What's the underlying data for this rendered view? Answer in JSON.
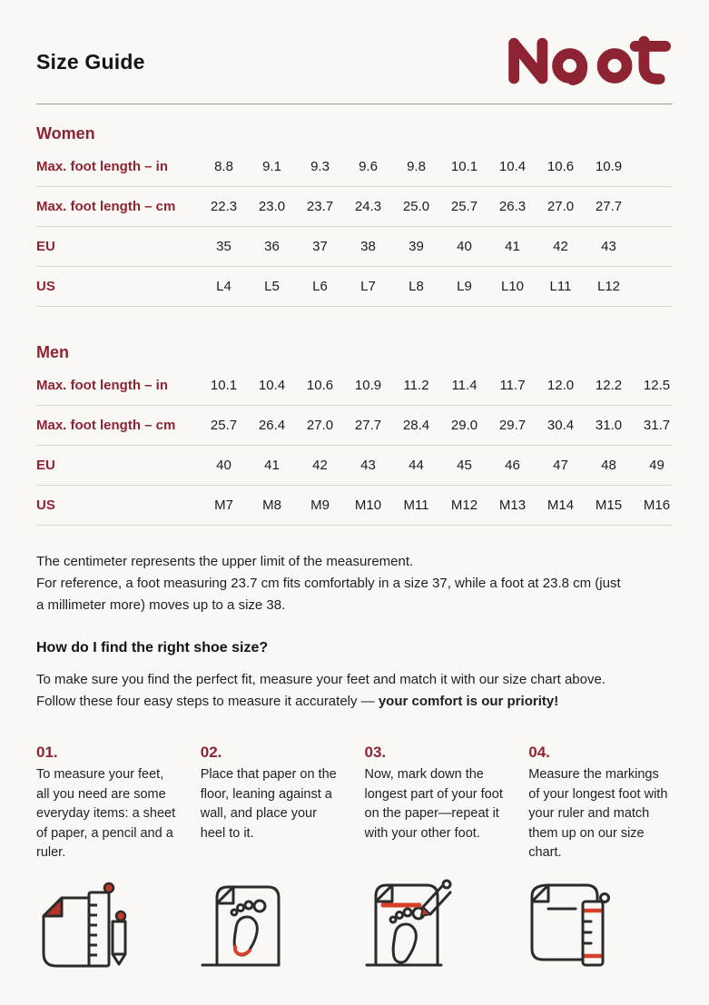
{
  "page": {
    "title": "Size Guide"
  },
  "brand": {
    "name": "Naot",
    "logo_color": "#8e2433"
  },
  "colors": {
    "background": "#faf8f4",
    "brand_red": "#8e2433",
    "accent_red": "#c5392b",
    "text": "#1c1c1c",
    "divider": "#dbd8d2",
    "header_rule": "#9e9c97"
  },
  "sections": [
    {
      "heading": "Women",
      "rows": [
        {
          "label": "Max. foot length – in",
          "values": [
            "8.8",
            "9.1",
            "9.3",
            "9.6",
            "9.8",
            "10.1",
            "10.4",
            "10.6",
            "10.9"
          ]
        },
        {
          "label": "Max. foot length – cm",
          "values": [
            "22.3",
            "23.0",
            "23.7",
            "24.3",
            "25.0",
            "25.7",
            "26.3",
            "27.0",
            "27.7"
          ]
        },
        {
          "label": "EU",
          "values": [
            "35",
            "36",
            "37",
            "38",
            "39",
            "40",
            "41",
            "42",
            "43"
          ]
        },
        {
          "label": "US",
          "values": [
            "L4",
            "L5",
            "L6",
            "L7",
            "L8",
            "L9",
            "L10",
            "L11",
            "L12"
          ]
        }
      ]
    },
    {
      "heading": "Men",
      "rows": [
        {
          "label": "Max. foot length – in",
          "values": [
            "10.1",
            "10.4",
            "10.6",
            "10.9",
            "11.2",
            "11.4",
            "11.7",
            "12.0",
            "12.2",
            "12.5"
          ]
        },
        {
          "label": "Max. foot length – cm",
          "values": [
            "25.7",
            "26.4",
            "27.0",
            "27.7",
            "28.4",
            "29.0",
            "29.7",
            "30.4",
            "31.0",
            "31.7"
          ]
        },
        {
          "label": "EU",
          "values": [
            "40",
            "41",
            "42",
            "43",
            "44",
            "45",
            "46",
            "47",
            "48",
            "49"
          ]
        },
        {
          "label": "US",
          "values": [
            "M7",
            "M8",
            "M9",
            "M10",
            "M11",
            "M12",
            "M13",
            "M14",
            "M15",
            "M16"
          ]
        }
      ]
    }
  ],
  "notes": {
    "p1": "The centimeter represents the upper limit of the measurement.",
    "p2": "For reference, a foot measuring 23.7 cm fits comfortably in a size 37, while a foot at 23.8 cm (just a millimeter more) moves up to a size 38."
  },
  "howto": {
    "heading": "How do I find the right shoe size?",
    "intro_normal": "To make sure you find the perfect fit, measure your feet and match it with our size chart above. Follow these four easy steps to measure it accurately — ",
    "intro_bold": "your comfort is our priority!"
  },
  "steps": [
    {
      "number": "01.",
      "text": "To measure your feet, all you need are some everyday items: a sheet of paper, a pencil and a ruler.",
      "icon": "paper-ruler-pencil-icon"
    },
    {
      "number": "02.",
      "text": "Place that paper on the floor, leaning against a wall, and place your heel to it.",
      "icon": "paper-footprint-icon"
    },
    {
      "number": "03.",
      "text": "Now, mark down the longest part of your foot on the paper—repeat it with your other foot.",
      "icon": "mark-foot-pencil-icon"
    },
    {
      "number": "04.",
      "text": "Measure the markings of your longest foot with your ruler and match them up on our size chart.",
      "icon": "paper-ruler-measure-icon"
    }
  ]
}
